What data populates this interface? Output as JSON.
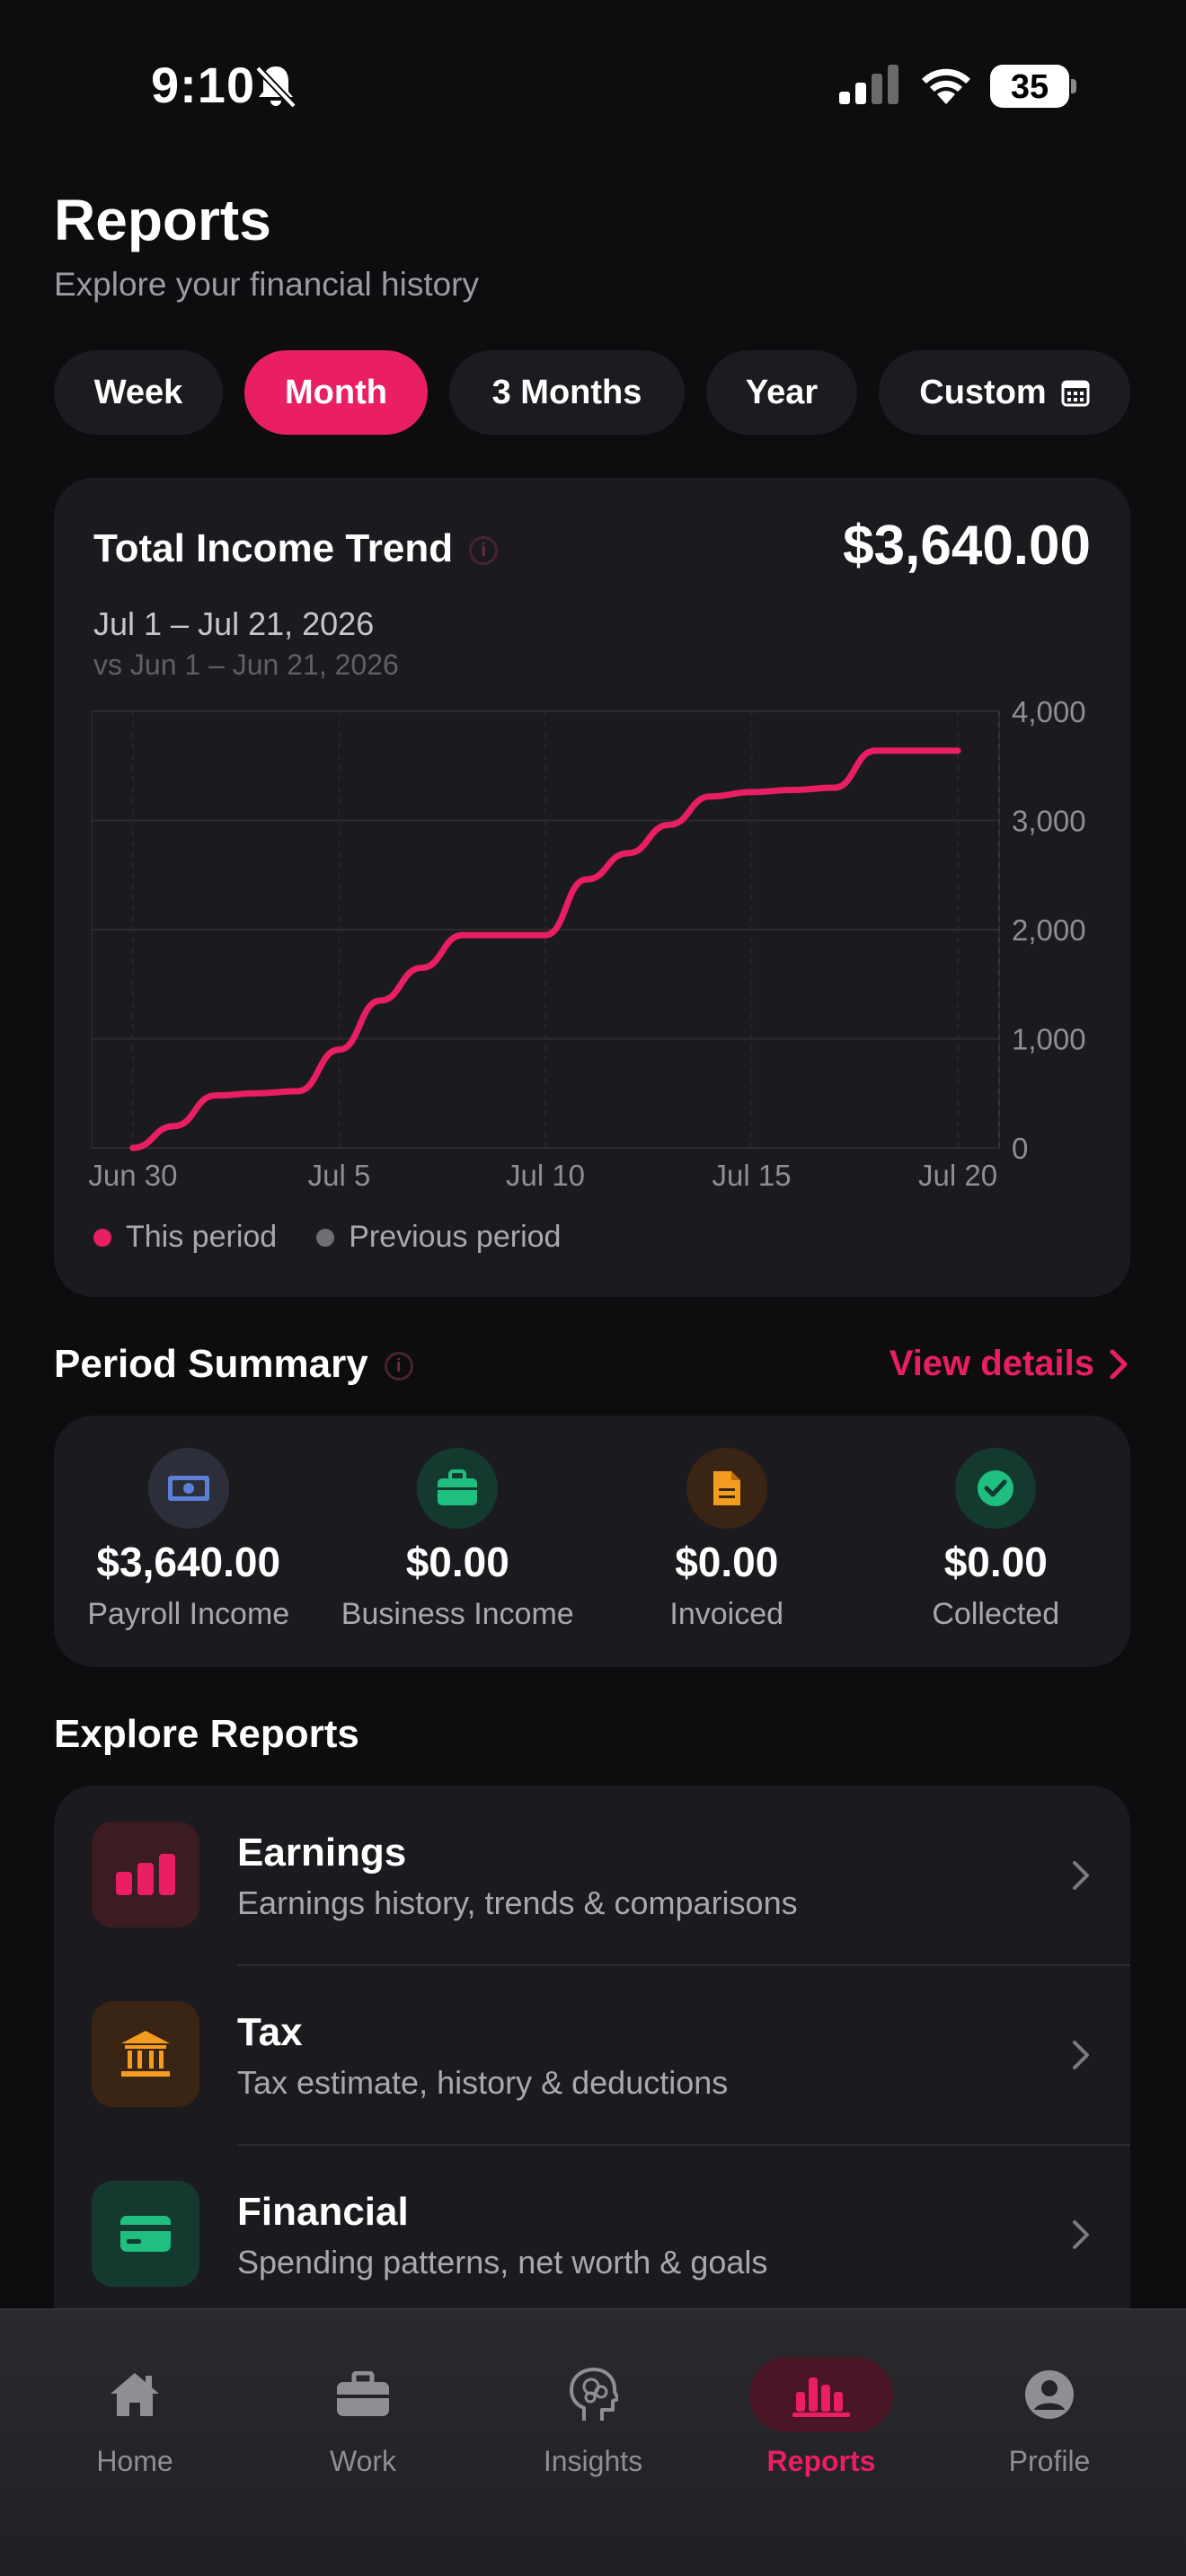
{
  "status_bar": {
    "time": "9:10",
    "battery": "35"
  },
  "header": {
    "title": "Reports",
    "subtitle": "Explore your financial history"
  },
  "filters": [
    {
      "label": "Week",
      "active": false
    },
    {
      "label": "Month",
      "active": true
    },
    {
      "label": "3 Months",
      "active": false
    },
    {
      "label": "Year",
      "active": false
    },
    {
      "label": "Custom",
      "active": false
    }
  ],
  "chart_card": {
    "title": "Total Income Trend",
    "total": "$3,640.00",
    "range": "Jul 1 – Jul 21, 2026",
    "compare": "vs Jun 1 – Jun 21, 2026",
    "legend": [
      "This period",
      "Previous period"
    ]
  },
  "chart_data": {
    "type": "line",
    "title": "Total Income Trend",
    "x_ticks": [
      "Jun 30",
      "Jul 5",
      "Jul 10",
      "Jul 15",
      "Jul 20"
    ],
    "y_ticks": [
      "0",
      "1,000",
      "2,000",
      "3,000",
      "4,000"
    ],
    "ylim": [
      0,
      4000
    ],
    "x_unit": "days from Jun 30",
    "grid": true,
    "legend_position": "bottom-left",
    "series": [
      {
        "name": "This period",
        "color": "#e91e63",
        "x": [
          1,
          2,
          3,
          4,
          5,
          6,
          7,
          8,
          9,
          10,
          11,
          12,
          13,
          14,
          15,
          16,
          17,
          18,
          19,
          20,
          21
        ],
        "y": [
          0,
          200,
          480,
          500,
          520,
          900,
          1350,
          1650,
          1950,
          1950,
          1950,
          2460,
          2700,
          2960,
          3220,
          3260,
          3280,
          3300,
          3640,
          3640,
          3640
        ]
      }
    ],
    "colors": {
      "this_period": "#e91e63",
      "previous_period": "#6e6e74"
    }
  },
  "summary": {
    "title": "Period Summary",
    "link": "View details",
    "items": [
      {
        "value": "$3,640.00",
        "label": "Payroll Income",
        "icon": "banknote-icon"
      },
      {
        "value": "$0.00",
        "label": "Business Income",
        "icon": "briefcase-icon"
      },
      {
        "value": "$0.00",
        "label": "Invoiced",
        "icon": "document-icon"
      },
      {
        "value": "$0.00",
        "label": "Collected",
        "icon": "check-circle-icon"
      }
    ]
  },
  "explore": {
    "title": "Explore Reports",
    "items": [
      {
        "title": "Earnings",
        "subtitle": "Earnings history, trends & comparisons",
        "icon": "bar-chart-icon"
      },
      {
        "title": "Tax",
        "subtitle": "Tax estimate, history & deductions",
        "icon": "bank-icon"
      },
      {
        "title": "Financial",
        "subtitle": "Spending patterns, net worth & goals",
        "icon": "credit-card-icon"
      }
    ]
  },
  "tabbar": [
    {
      "label": "Home",
      "icon": "home-icon"
    },
    {
      "label": "Work",
      "icon": "briefcase-icon"
    },
    {
      "label": "Insights",
      "icon": "brain-icon"
    },
    {
      "label": "Reports",
      "icon": "bar-chart-icon",
      "active": true
    },
    {
      "label": "Profile",
      "icon": "person-icon"
    }
  ]
}
